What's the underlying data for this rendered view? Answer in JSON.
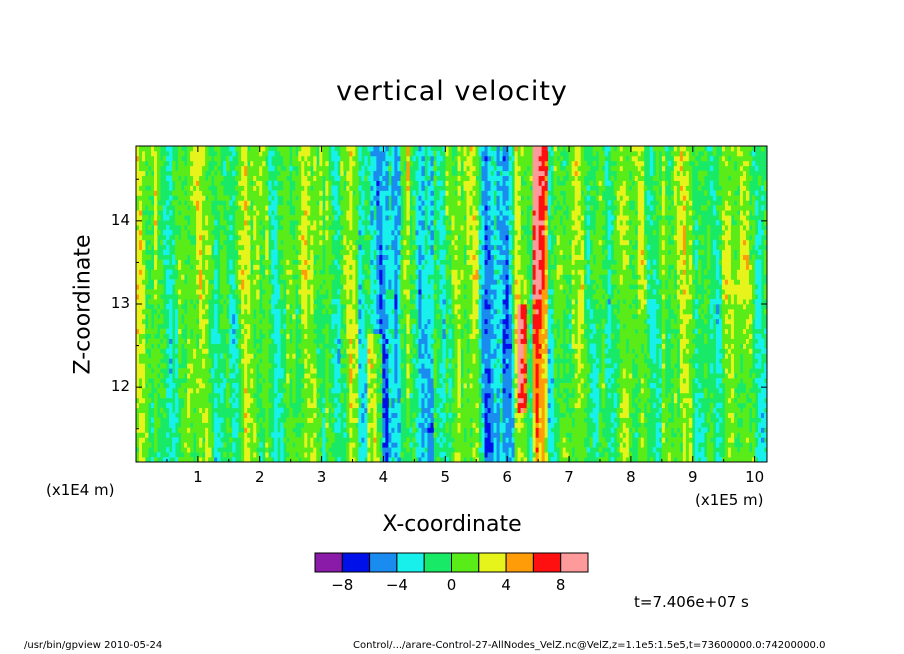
{
  "header": {
    "title": "vertical velocity"
  },
  "footer": {
    "left": "/usr/bin/gpview  2010-05-24",
    "right": "Control/.../arare-Control-27-AllNodes_VelZ.nc@VelZ,z=1.1e5:1.5e5,t=73600000.0:74200000.0"
  },
  "annotation": {
    "time": "t=7.406e+07 s"
  },
  "chart_data": {
    "type": "heatmap",
    "title": "vertical velocity",
    "xlabel": "X-coordinate",
    "ylabel": "Z-coordinate",
    "xunit": "(x1E5 m)",
    "yunit": "(x1E4 m)",
    "xlim": [
      0,
      10.2
    ],
    "ylim": [
      11.1,
      14.9
    ],
    "xticks": [
      "1",
      "2",
      "3",
      "4",
      "5",
      "6",
      "7",
      "8",
      "9",
      "10"
    ],
    "yticks": [
      "12",
      "13",
      "14"
    ],
    "xtick_values": [
      1,
      2,
      3,
      4,
      5,
      6,
      7,
      8,
      9,
      10
    ],
    "ytick_values": [
      12,
      13,
      14
    ],
    "colorbar": {
      "colors": [
        "#8a1aa8",
        "#0010e8",
        "#1a8cf0",
        "#18f0ec",
        "#18ea68",
        "#5aec18",
        "#e6f41c",
        "#ff9c08",
        "#ff1010",
        "#ff9a9a"
      ],
      "boundaries": [
        -10,
        -8,
        -6,
        -4,
        -2,
        0,
        2,
        4,
        6,
        8,
        10
      ],
      "labels": [
        "-8",
        "-4",
        "0",
        "4",
        "8"
      ]
    }
  }
}
